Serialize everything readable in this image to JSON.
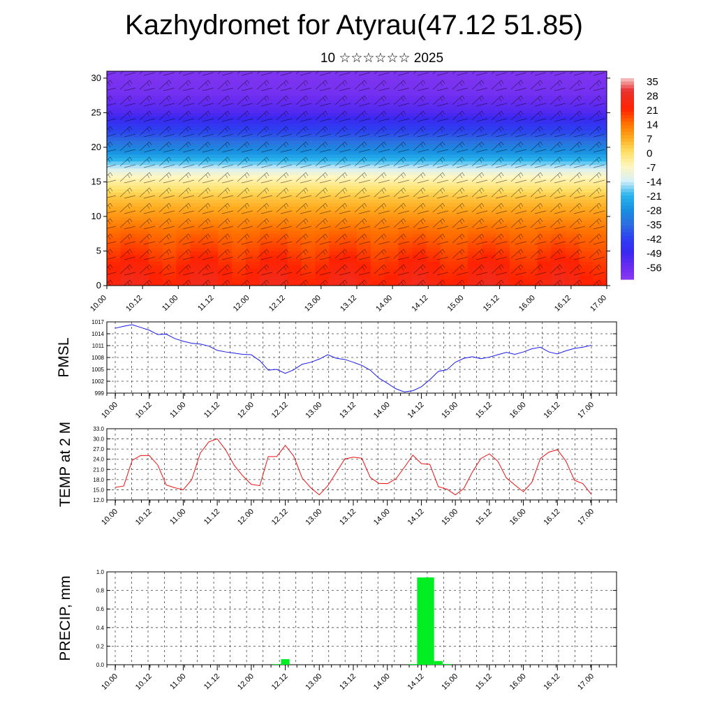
{
  "page": {
    "title": "Kazhydromet for Atyrau(47.12 51.85)",
    "subtitle": "10 ☆☆☆☆☆☆ 2025"
  },
  "time_labels": [
    "10.00",
    "10.12",
    "11.00",
    "11.12",
    "12.00",
    "12.12",
    "13.00",
    "13.12",
    "14.00",
    "14.12",
    "15.00",
    "15.12",
    "16.00",
    "16.12",
    "17.00"
  ],
  "chart_data": [
    {
      "type": "heatmap",
      "title": "",
      "y_ticks": [
        0,
        5,
        10,
        15,
        20,
        25,
        30
      ],
      "ylim": [
        0,
        31
      ],
      "colorbar": {
        "labels": [
          "35",
          "28",
          "21",
          "14",
          "7",
          "0",
          "-7",
          "-14",
          "-21",
          "-28",
          "-35",
          "-42",
          "-49",
          "-56"
        ],
        "stops": [
          {
            "v": 36,
            "color": "#f8c8c8"
          },
          {
            "v": 30,
            "color": "#e83232"
          },
          {
            "v": 21,
            "color": "#ff2200"
          },
          {
            "v": 14,
            "color": "#ff7000"
          },
          {
            "v": 7,
            "color": "#ffaa1e"
          },
          {
            "v": 0,
            "color": "#ffe066"
          },
          {
            "v": -7,
            "color": "#fff6c0"
          },
          {
            "v": -14,
            "color": "#d8f0f8"
          },
          {
            "v": -21,
            "color": "#2bb5ee"
          },
          {
            "v": -28,
            "color": "#1890e0"
          },
          {
            "v": -35,
            "color": "#2c6fe0"
          },
          {
            "v": -42,
            "color": "#2d40f0"
          },
          {
            "v": -49,
            "color": "#3a28f0"
          },
          {
            "v": -56,
            "color": "#6a2cf0"
          },
          {
            "v": -62,
            "color": "#8a3af0"
          }
        ]
      },
      "temp_profile": {
        "levels": [
          0,
          3,
          8,
          13,
          16,
          19,
          22,
          25,
          28,
          31
        ],
        "temps": [
          24,
          21,
          14,
          3,
          -8,
          -26,
          -40,
          -52,
          -58,
          -60
        ]
      }
    },
    {
      "type": "line",
      "name": "PMSL",
      "ylabel": "PMSL",
      "ylim": [
        999,
        1017
      ],
      "y_ticks": [
        999,
        1002,
        1005,
        1008,
        1011,
        1014,
        1017
      ],
      "line_color": "#1a1aee",
      "values": [
        1015.4,
        1015.9,
        1016.3,
        1015.6,
        1014.9,
        1013.8,
        1013.9,
        1012.8,
        1012.1,
        1011.6,
        1011.4,
        1010.9,
        1009.8,
        1009.4,
        1009.1,
        1008.8,
        1008.7,
        1007.2,
        1004.8,
        1005.0,
        1004.0,
        1004.9,
        1006.3,
        1006.8,
        1007.6,
        1008.7,
        1007.8,
        1007.5,
        1006.8,
        1006.0,
        1004.8,
        1002.8,
        1001.5,
        1000.1,
        999.3,
        999.6,
        1000.6,
        1002.4,
        1004.5,
        1004.9,
        1006.8,
        1007.8,
        1008.2,
        1007.7,
        1008.1,
        1008.7,
        1009.3,
        1008.8,
        1009.4,
        1010.2,
        1010.6,
        1009.4,
        1008.9,
        1009.7,
        1010.3,
        1010.6,
        1011.1
      ]
    },
    {
      "type": "line",
      "name": "TEMP at 2 M",
      "ylabel": "TEMP at 2 M",
      "ylim": [
        12,
        33
      ],
      "y_ticks": [
        "12.0",
        "15.0",
        "18.0",
        "21.0",
        "24.0",
        "27.0",
        "30.0",
        "33.0"
      ],
      "line_color": "#ee1111",
      "values": [
        15.7,
        16.1,
        23.7,
        25.1,
        25.1,
        22.3,
        16.4,
        15.6,
        15.0,
        18.0,
        25.8,
        29.1,
        30.0,
        26.7,
        22.2,
        19.1,
        16.6,
        16.2,
        24.8,
        24.8,
        28.1,
        24.9,
        18.4,
        15.6,
        13.5,
        16.2,
        20.1,
        24.1,
        24.6,
        24.3,
        18.6,
        16.9,
        16.8,
        18.2,
        21.6,
        25.2,
        22.7,
        22.5,
        15.9,
        15.2,
        13.5,
        15.4,
        20.2,
        24.2,
        25.6,
        23.4,
        18.5,
        16.4,
        14.4,
        17.2,
        24.2,
        26.1,
        26.8,
        23.5,
        17.8,
        16.8,
        13.6
      ]
    },
    {
      "type": "bar",
      "name": "PRECIP, mm",
      "ylabel": "PRECIP, mm",
      "ylim": [
        0,
        1.0
      ],
      "y_ticks": [
        "0.0",
        "0.2",
        "0.4",
        "0.6",
        "0.8",
        "1.0"
      ],
      "bar_color": "#00ee22",
      "values": [
        0,
        0,
        0,
        0,
        0,
        0,
        0,
        0,
        0,
        0,
        0,
        0,
        0,
        0,
        0,
        0,
        0,
        0,
        0,
        0.007,
        0.06,
        0,
        0,
        0,
        0,
        0,
        0,
        0,
        0,
        0,
        0,
        0,
        0,
        0,
        0,
        0.007,
        0.94,
        0.94,
        0.04,
        0.008,
        0,
        0,
        0,
        0,
        0,
        0,
        0,
        0,
        0,
        0,
        0,
        0,
        0,
        0,
        0,
        0,
        0
      ]
    }
  ]
}
